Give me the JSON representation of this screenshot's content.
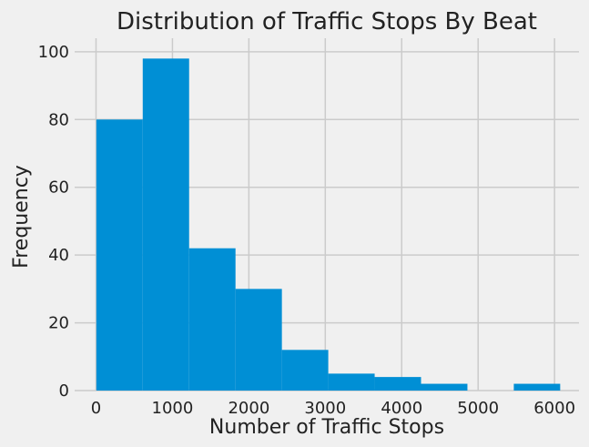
{
  "chart_data": {
    "type": "bar",
    "subtype": "histogram",
    "title": "Distribution of Traffic Stops By Beat",
    "xlabel": "Number of Traffic Stops",
    "ylabel": "Frequency",
    "xlim": [
      -280,
      6320
    ],
    "ylim": [
      0,
      104
    ],
    "xticks": [
      0,
      1000,
      2000,
      3000,
      4000,
      5000,
      6000
    ],
    "yticks": [
      0,
      20,
      40,
      60,
      80,
      100
    ],
    "bin_edges": [
      4,
      611,
      1218,
      1825,
      2432,
      3039,
      3646,
      4253,
      4860,
      5467,
      6074
    ],
    "counts": [
      80,
      98,
      42,
      30,
      12,
      5,
      4,
      2,
      0,
      2
    ],
    "bar_color": "#008fd5",
    "grid": true
  }
}
